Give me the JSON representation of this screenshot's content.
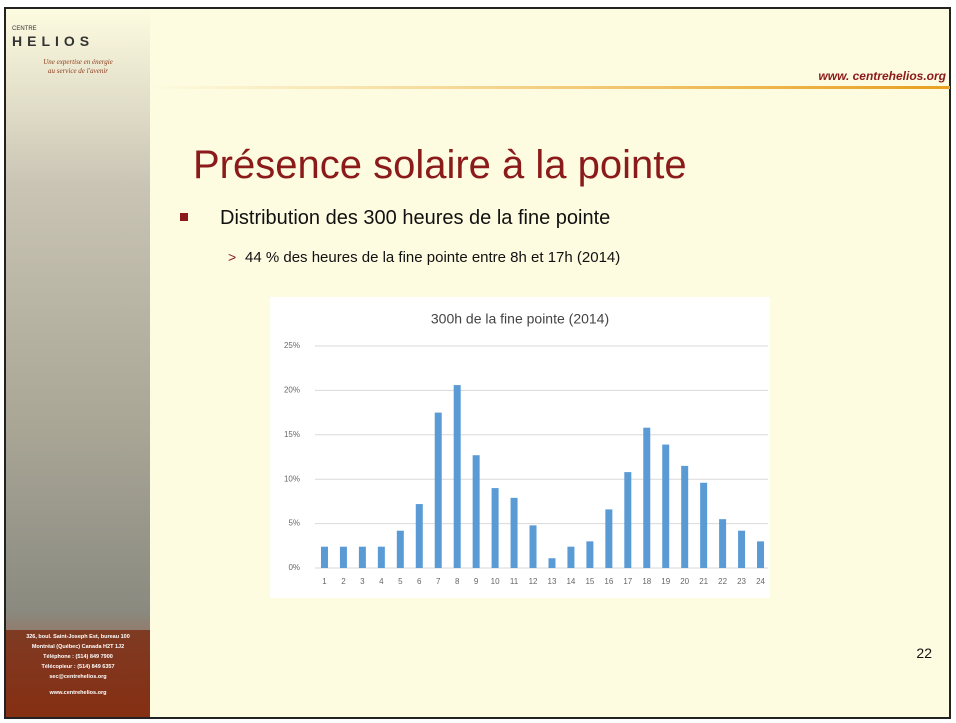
{
  "sidebar": {
    "logo_top": "CENTRE",
    "logo": "HELIOS",
    "tagline": [
      "Une expertise en énergie",
      "au service de l'avenir"
    ],
    "address": [
      "326, boul. Saint-Joseph Est, bureau 100",
      "Montréal (Québec) Canada H2T 1J2",
      "Téléphone : (514) 849 7900",
      "Télécopieur : (514) 849 6357",
      "sec@centrehelios.org"
    ],
    "footer_url": "www.centrehelios.org"
  },
  "slide": {
    "url": "www. centrehelios.org",
    "title": "Présence solaire à la pointe",
    "bullet": "Distribution des 300 heures de la fine pointe",
    "sub_bullet": "44 % des heures de la fine pointe entre 8h et 17h (2014)",
    "page_number": "22"
  },
  "chart_data": {
    "type": "bar",
    "title": "300h de la fine pointe (2014)",
    "categories": [
      "1",
      "2",
      "3",
      "4",
      "5",
      "6",
      "7",
      "8",
      "9",
      "10",
      "11",
      "12",
      "13",
      "14",
      "15",
      "16",
      "17",
      "18",
      "19",
      "20",
      "21",
      "22",
      "23",
      "24"
    ],
    "values": [
      2.4,
      2.4,
      2.4,
      2.4,
      4.2,
      7.2,
      17.5,
      20.6,
      12.7,
      9,
      7.9,
      4.8,
      1.1,
      2.4,
      3,
      6.6,
      10.8,
      15.8,
      13.9,
      11.5,
      9.6,
      5.5,
      4.2,
      3
    ],
    "color": "#5b9bd5",
    "ylim": [
      0,
      25
    ],
    "yticks": [
      {
        "value": 0,
        "label": "0%"
      },
      {
        "value": 5,
        "label": "5%"
      },
      {
        "value": 10,
        "label": "10%"
      },
      {
        "value": 15,
        "label": "15%"
      },
      {
        "value": 20,
        "label": "20%"
      },
      {
        "value": 25,
        "label": "25%"
      }
    ],
    "grid": true
  }
}
